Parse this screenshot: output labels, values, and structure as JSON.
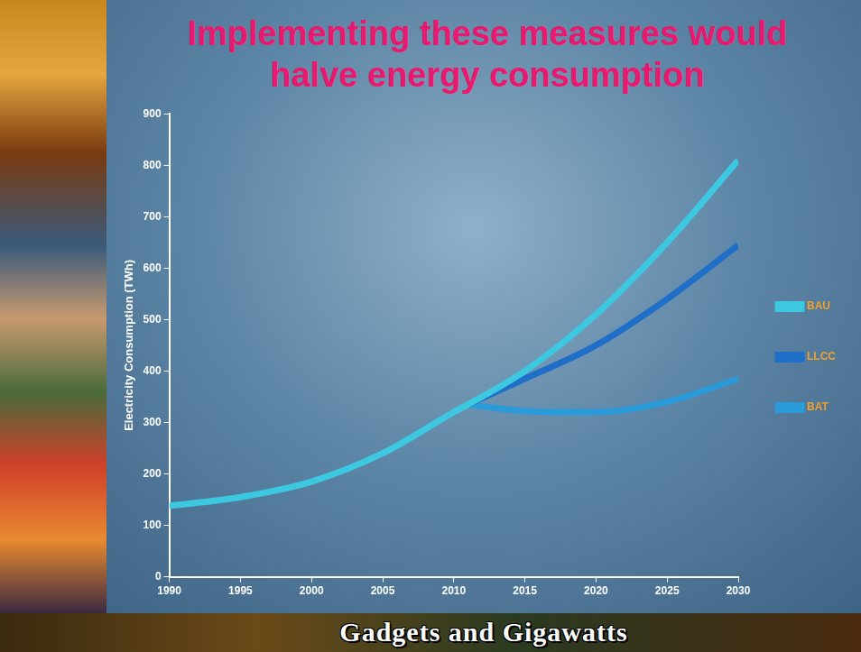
{
  "chart_data": {
    "type": "line",
    "title": "Implementing these measures would halve energy consumption",
    "y_label": "Electricity Consumption (TWh)",
    "annotations": [
      "Gadgets and Gigawatts"
    ],
    "x": [
      1990,
      1995,
      2000,
      2005,
      2010,
      2011,
      2015,
      2020,
      2025,
      2030
    ],
    "series": [
      {
        "name": "BAU",
        "color": "#3cc8e0",
        "values": [
          138,
          155,
          185,
          240,
          320,
          335,
          400,
          510,
          650,
          810
        ]
      },
      {
        "name": "LLCC",
        "color": "#1f6fc8",
        "values": [
          null,
          null,
          null,
          null,
          null,
          335,
          385,
          450,
          540,
          645
        ]
      },
      {
        "name": "BAT",
        "color": "#2a9ad8",
        "values": [
          null,
          null,
          null,
          null,
          null,
          335,
          322,
          320,
          340,
          385
        ]
      }
    ],
    "xlim": [
      1990,
      2030
    ],
    "xticks": [
      1990,
      1995,
      2000,
      2005,
      2010,
      2015,
      2020,
      2025,
      2030
    ],
    "ylim": [
      0,
      900
    ],
    "yticks": [
      0,
      100,
      200,
      300,
      400,
      500,
      600,
      700,
      800,
      900
    ],
    "grid": false,
    "legend": "right"
  }
}
